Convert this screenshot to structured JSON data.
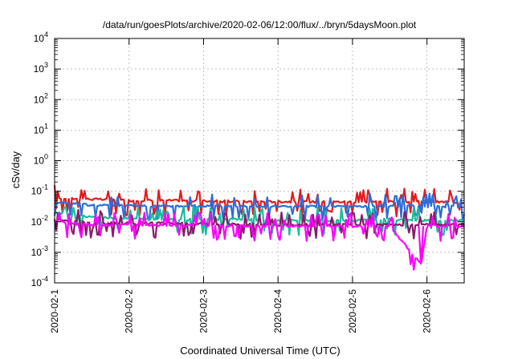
{
  "chart_data": {
    "type": "line",
    "title": "/data/run/goesPlots/archive/2020-02-06/12:00/flux/../bryn/5daysMoon.plot",
    "xlabel": "Coordinated Universal Time (UTC)",
    "ylabel": "cSv/day",
    "yscale": "log",
    "ylim": [
      0.0001,
      10000
    ],
    "xlim": [
      "2020-02-01",
      "2020-02-06 12:00"
    ],
    "x_ticks": [
      "2020-02-1",
      "2020-02-2",
      "2020-02-3",
      "2020-02-4",
      "2020-02-5",
      "2020-02-6"
    ],
    "y_ticks": [
      {
        "base": "10",
        "exp": "-4"
      },
      {
        "base": "10",
        "exp": "-3"
      },
      {
        "base": "10",
        "exp": "-2"
      },
      {
        "base": "10",
        "exp": "-1"
      },
      {
        "base": "10",
        "exp": "0"
      },
      {
        "base": "10",
        "exp": "1"
      },
      {
        "base": "10",
        "exp": "2"
      },
      {
        "base": "10",
        "exp": "3"
      },
      {
        "base": "10",
        "exp": "4"
      }
    ],
    "grid": true,
    "legend": "none",
    "series": [
      {
        "color": "#e41a1c",
        "days": [
          0.0,
          0.5,
          1.0,
          1.5,
          2.0,
          2.5,
          3.0,
          3.5,
          4.0,
          4.5,
          5.0,
          5.5
        ],
        "values": [
          0.06,
          0.055,
          0.05,
          0.05,
          0.048,
          0.046,
          0.046,
          0.045,
          0.045,
          0.046,
          0.045,
          0.044
        ]
      },
      {
        "color": "#2a6fdb",
        "days": [
          0.0,
          0.5,
          1.0,
          1.5,
          2.0,
          2.5,
          3.0,
          3.5,
          4.0,
          4.5,
          5.0,
          5.5
        ],
        "values": [
          0.045,
          0.035,
          0.034,
          0.033,
          0.033,
          0.033,
          0.032,
          0.032,
          0.032,
          0.033,
          0.032,
          0.031
        ]
      },
      {
        "color": "#1abc9c",
        "days": [
          0.0,
          0.5,
          1.0,
          1.5,
          2.0,
          2.5,
          3.0,
          3.5,
          4.0,
          4.5,
          5.0,
          5.5
        ],
        "values": [
          0.02,
          0.014,
          0.013,
          0.012,
          0.012,
          0.012,
          0.011,
          0.011,
          0.011,
          0.012,
          0.011,
          0.011
        ]
      },
      {
        "color": "#8b1a6b",
        "days": [
          0.0,
          0.5,
          1.0,
          1.5,
          2.0,
          2.5,
          3.0,
          3.5,
          4.0,
          4.5,
          5.0,
          5.5
        ],
        "values": [
          0.012,
          0.009,
          0.009,
          0.009,
          0.0085,
          0.0085,
          0.008,
          0.008,
          0.008,
          0.008,
          0.008,
          0.008
        ]
      },
      {
        "color": "#ff00ff",
        "days": [
          0.0,
          0.5,
          1.0,
          1.5,
          2.0,
          2.5,
          3.0,
          3.5,
          4.0,
          4.5,
          4.92,
          5.0,
          5.5
        ],
        "values": [
          0.01,
          0.008,
          0.008,
          0.0078,
          0.0075,
          0.0075,
          0.0072,
          0.0072,
          0.0072,
          0.0072,
          0.0004,
          0.0075,
          0.0072
        ]
      }
    ]
  }
}
